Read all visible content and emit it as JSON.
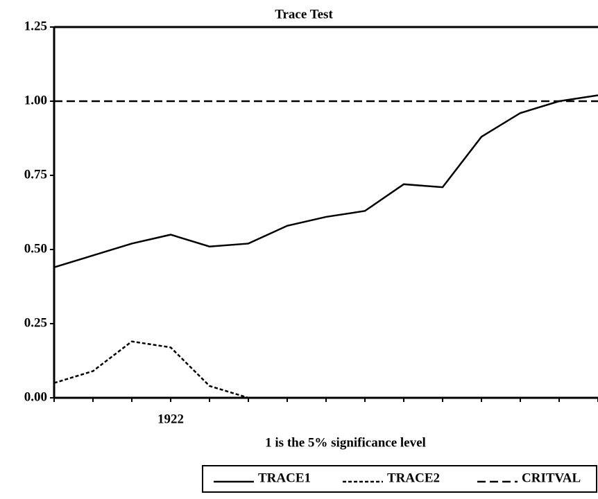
{
  "chart_data": {
    "type": "line",
    "title": "Trace Test",
    "annotation": "1 is the 5% significance level",
    "categories": [
      null,
      null,
      null,
      "1922",
      null,
      null,
      null,
      null,
      null,
      null,
      null,
      null,
      null,
      null,
      null
    ],
    "series": [
      {
        "name": "TRACE1",
        "color": "#000000",
        "dash": "solid",
        "values": [
          0.44,
          0.48,
          0.52,
          0.55,
          0.51,
          0.52,
          0.58,
          0.61,
          0.63,
          0.72,
          0.71,
          0.88,
          0.96,
          1.0,
          1.02
        ]
      },
      {
        "name": "TRACE2",
        "color": "#000000",
        "dash": "dotted",
        "values": [
          0.05,
          0.09,
          0.19,
          0.17,
          0.04,
          0.0,
          0.0,
          0.0,
          0.0,
          0.0,
          0.0,
          0.0,
          0.0,
          0.0,
          0.0
        ]
      },
      {
        "name": "CRITVAL",
        "color": "#000000",
        "dash": "dashed",
        "values": [
          1.0,
          1.0,
          1.0,
          1.0,
          1.0,
          1.0,
          1.0,
          1.0,
          1.0,
          1.0,
          1.0,
          1.0,
          1.0,
          1.0,
          1.0
        ]
      }
    ],
    "ylim": [
      0,
      1.25
    ],
    "yticks": [
      {
        "value": 0,
        "label": "0.00"
      },
      0.25,
      {
        "value": 0.5,
        "label": "0.50"
      },
      0.75,
      {
        "value": 1,
        "label": "1.00"
      },
      {
        "value": 1.25,
        "label": "1.25"
      }
    ],
    "legend": "bottom-right"
  }
}
